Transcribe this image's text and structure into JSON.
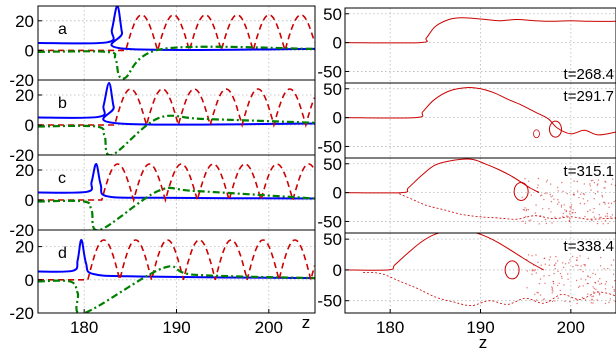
{
  "chart_data": [
    {
      "type": "line",
      "name": "left-panel-a",
      "panel_label": "a",
      "ylim": [
        -20,
        30
      ],
      "yticks": [
        -20,
        0,
        20
      ],
      "ytick_labels": [
        "-20",
        "0",
        "20"
      ],
      "xlim": [
        175,
        205
      ],
      "pulse_peak_z": 183.6,
      "pulse_peak_value": 30,
      "series": [
        {
          "color": "#0000ff",
          "style": "solid",
          "x": [
            175,
            182.5,
            183.0,
            183.6,
            184.1,
            184.6,
            205
          ],
          "y": [
            5,
            5.5,
            14,
            30,
            12,
            1,
            1
          ]
        },
        {
          "color": "#cc0000",
          "style": "dashed",
          "x_start": 184.5,
          "period": 3.45,
          "amplitude": 24,
          "baseline": 0
        },
        {
          "color": "#008000",
          "style": "dashdot",
          "x": [
            175,
            182.5,
            183.4,
            184.3,
            188.5,
            205
          ],
          "y": [
            -1,
            -1,
            -6,
            -19,
            1,
            1
          ]
        }
      ]
    },
    {
      "type": "line",
      "name": "left-panel-b",
      "panel_label": "b",
      "ylim": [
        -20,
        30
      ],
      "yticks": [
        -20,
        0,
        20
      ],
      "ytick_labels": [
        "-20",
        "0",
        "20"
      ],
      "xlim": [
        175,
        205
      ],
      "pulse_peak_z": 182.7,
      "pulse_peak_value": 28,
      "series": [
        {
          "color": "#0000ff",
          "style": "solid",
          "x": [
            175,
            181.6,
            182.1,
            182.7,
            183.2,
            183.8,
            205
          ],
          "y": [
            5,
            5.5,
            13,
            28,
            12,
            1,
            1
          ]
        },
        {
          "color": "#cc0000",
          "style": "dashed",
          "x_start": 183.3,
          "period": 3.45,
          "amplitude": 24,
          "baseline": 0
        },
        {
          "color": "#008000",
          "style": "dashdot",
          "x": [
            175,
            181.3,
            182.2,
            183.0,
            188.0,
            193.0,
            205
          ],
          "y": [
            -1,
            -1,
            -7,
            -20,
            4.5,
            4,
            1.5
          ]
        }
      ]
    },
    {
      "type": "line",
      "name": "left-panel-c",
      "panel_label": "c",
      "ylim": [
        -20,
        30
      ],
      "yticks": [
        -20,
        0,
        20
      ],
      "ytick_labels": [
        "-20",
        "0",
        "20"
      ],
      "xlim": [
        175,
        205
      ],
      "pulse_peak_z": 181.3,
      "pulse_peak_value": 24,
      "series": [
        {
          "color": "#0000ff",
          "style": "solid",
          "x": [
            175,
            180.3,
            180.8,
            181.3,
            181.8,
            182.5,
            188,
            205
          ],
          "y": [
            5,
            5.5,
            12,
            24,
            10,
            2.5,
            1.5,
            1
          ]
        },
        {
          "color": "#cc0000",
          "style": "dashed",
          "x_start": 181.9,
          "period": 3.45,
          "amplitude": 24,
          "baseline": 0
        },
        {
          "color": "#008000",
          "style": "dashdot",
          "x": [
            175,
            180.0,
            180.8,
            181.7,
            188.0,
            192.0,
            205
          ],
          "y": [
            -1,
            -1,
            -7,
            -20,
            6,
            6,
            1
          ]
        }
      ]
    },
    {
      "type": "line",
      "name": "left-panel-d",
      "panel_label": "d",
      "ylim": [
        -20,
        30
      ],
      "yticks": [
        -20,
        0,
        20
      ],
      "ytick_labels": [
        "-20",
        "0",
        "20"
      ],
      "xlim": [
        175,
        205
      ],
      "xticks": [
        180,
        190,
        200
      ],
      "xtick_labels": [
        "180",
        "190",
        "200"
      ],
      "xlabel": "z",
      "pulse_peak_z": 179.7,
      "pulse_peak_value": 24,
      "series": [
        {
          "color": "#0000ff",
          "style": "solid",
          "x": [
            175,
            178.8,
            179.3,
            179.7,
            180.2,
            181.0,
            186,
            205
          ],
          "y": [
            5,
            5.5,
            12,
            24,
            10,
            3.5,
            2,
            1
          ]
        },
        {
          "color": "#cc0000",
          "style": "dashed",
          "x_start": 180.4,
          "period": 3.45,
          "amplitude": 24,
          "baseline": 0
        },
        {
          "color": "#008000",
          "style": "dashdot",
          "x": [
            175,
            178.5,
            179.3,
            180.0,
            188.5,
            192.0,
            205
          ],
          "y": [
            -1,
            -1,
            -8,
            -20,
            7,
            3,
            1
          ]
        }
      ]
    },
    {
      "type": "line",
      "name": "right-panel-1",
      "time_label": "t=268.4",
      "ylim": [
        -70,
        60
      ],
      "yticks": [
        -50,
        0,
        50
      ],
      "ytick_labels": [
        "-50",
        "0",
        "50"
      ],
      "xlim": [
        175,
        205
      ],
      "color": "#cc0000",
      "x": [
        175,
        183.3,
        184.0,
        185.0,
        186.5,
        188.0,
        190.0,
        192.0,
        194.0,
        196.0,
        198.0,
        200.0,
        202.0,
        205.0
      ],
      "y": [
        0,
        0,
        8,
        28,
        40,
        43,
        41,
        38,
        40,
        38,
        37,
        38,
        37,
        37
      ],
      "upper_envelope_z": [
        175,
        205
      ],
      "lower_envelope_z": [
        175,
        205
      ]
    },
    {
      "type": "line",
      "name": "right-panel-2",
      "time_label": "t=291.7",
      "ylim": [
        -70,
        60
      ],
      "yticks": [
        -50,
        0,
        50
      ],
      "ytick_labels": [
        "-50",
        "0",
        "50"
      ],
      "xlim": [
        175,
        205
      ],
      "color": "#cc0000",
      "x": [
        175,
        182.8,
        183.6,
        184.8,
        186.5,
        188.5,
        190.0,
        191.5,
        193.0,
        194.5,
        196.0,
        197.5,
        198.5,
        200.0,
        201.5,
        203.0,
        205.0
      ],
      "y": [
        0,
        0,
        10,
        30,
        46,
        52,
        50,
        43,
        32,
        22,
        10,
        -2,
        -18,
        -28,
        -22,
        -30,
        -25
      ]
    },
    {
      "type": "line",
      "name": "right-panel-3",
      "time_label": "t=315.1",
      "ylim": [
        -70,
        60
      ],
      "yticks": [
        -50,
        0,
        50
      ],
      "ytick_labels": [
        "-50",
        "0",
        "50"
      ],
      "xlim": [
        175,
        205
      ],
      "color": "#cc0000",
      "upper_x": [
        175,
        181.3,
        182.0,
        183.5,
        185.0,
        187.0,
        189.0,
        190.5,
        192.0,
        193.5,
        194.5,
        195.5,
        196.5
      ],
      "upper_y": [
        0,
        0,
        8,
        30,
        48,
        56,
        58,
        50,
        40,
        28,
        18,
        8,
        0
      ],
      "lower_x": [
        181.0,
        182.5,
        184.0,
        186.0,
        188.0,
        190.0,
        192.0,
        194.0,
        196.0,
        198.0,
        200.0,
        202.0,
        205.0
      ],
      "lower_y": [
        -2,
        -12,
        -22,
        -30,
        -38,
        -42,
        -44,
        -46,
        -40,
        -45,
        -42,
        -46,
        -44
      ]
    },
    {
      "type": "line",
      "name": "right-panel-4",
      "time_label": "t=338.4",
      "ylim": [
        -70,
        60
      ],
      "yticks": [
        -50,
        0,
        50
      ],
      "ytick_labels": [
        "-50",
        "0",
        "50"
      ],
      "xlim": [
        175,
        205
      ],
      "xticks": [
        180,
        190,
        200
      ],
      "xtick_labels": [
        "180",
        "190",
        "200"
      ],
      "xlabel": "z",
      "color": "#cc0000",
      "upper_x": [
        175,
        179.8,
        180.5,
        182.0,
        183.5,
        185.0,
        187.0,
        189.0,
        190.5,
        192.0,
        194.0,
        195.5,
        197.0
      ],
      "upper_y": [
        0,
        0,
        8,
        28,
        46,
        58,
        64,
        62,
        55,
        44,
        26,
        12,
        0
      ],
      "lower_x": [
        177.0,
        179.0,
        181.0,
        183.0,
        185.0,
        187.0,
        189.0,
        191.0,
        193.0,
        195.0,
        197.0,
        199.0,
        201.0,
        203.0,
        205.0
      ],
      "lower_y": [
        -4,
        -6,
        -18,
        -30,
        -44,
        -52,
        -58,
        -50,
        -56,
        -46,
        -54,
        -40,
        -48,
        -36,
        -42
      ]
    }
  ]
}
